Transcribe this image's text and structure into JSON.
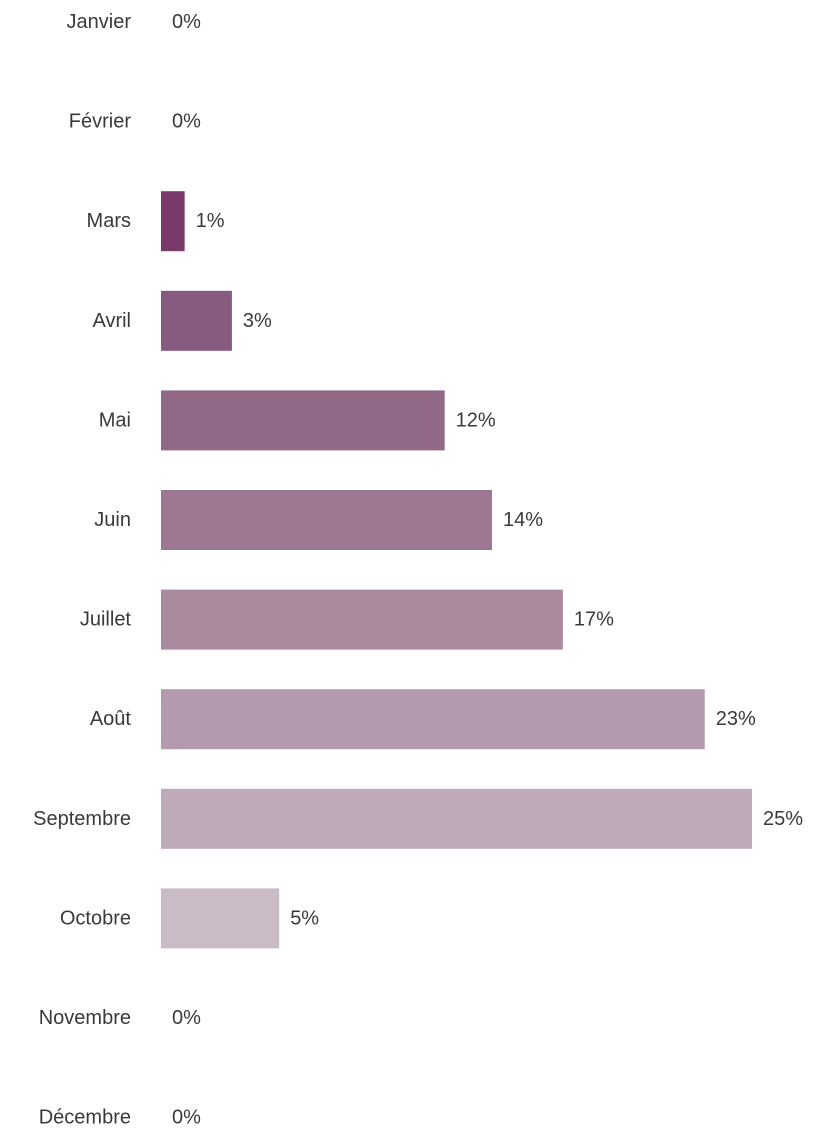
{
  "chart_data": {
    "type": "bar",
    "orientation": "horizontal",
    "title": "",
    "xlabel": "",
    "ylabel": "",
    "grid": false,
    "legend": "none",
    "categories": [
      "Janvier",
      "Février",
      "Mars",
      "Avril",
      "Mai",
      "Juin",
      "Juillet",
      "Août",
      "Septembre",
      "Octobre",
      "Novembre",
      "Décembre"
    ],
    "values": [
      0,
      0,
      1,
      3,
      12,
      14,
      17,
      23,
      25,
      5,
      0,
      0
    ],
    "value_labels": [
      "0%",
      "0%",
      "1%",
      "3%",
      "12%",
      "14%",
      "17%",
      "23%",
      "25%",
      "5%",
      "0%",
      "0%"
    ],
    "unit": "%",
    "xlim": [
      0,
      25
    ],
    "colors": [
      "#74325f",
      "#74325f",
      "#7a3a69",
      "#875a80",
      "#916886",
      "#9c7893",
      "#a98a9f",
      "#b49aaf",
      "#bfaaba",
      "#c9bcc6",
      "#c9bcc6",
      "#c9bcc6"
    ]
  }
}
